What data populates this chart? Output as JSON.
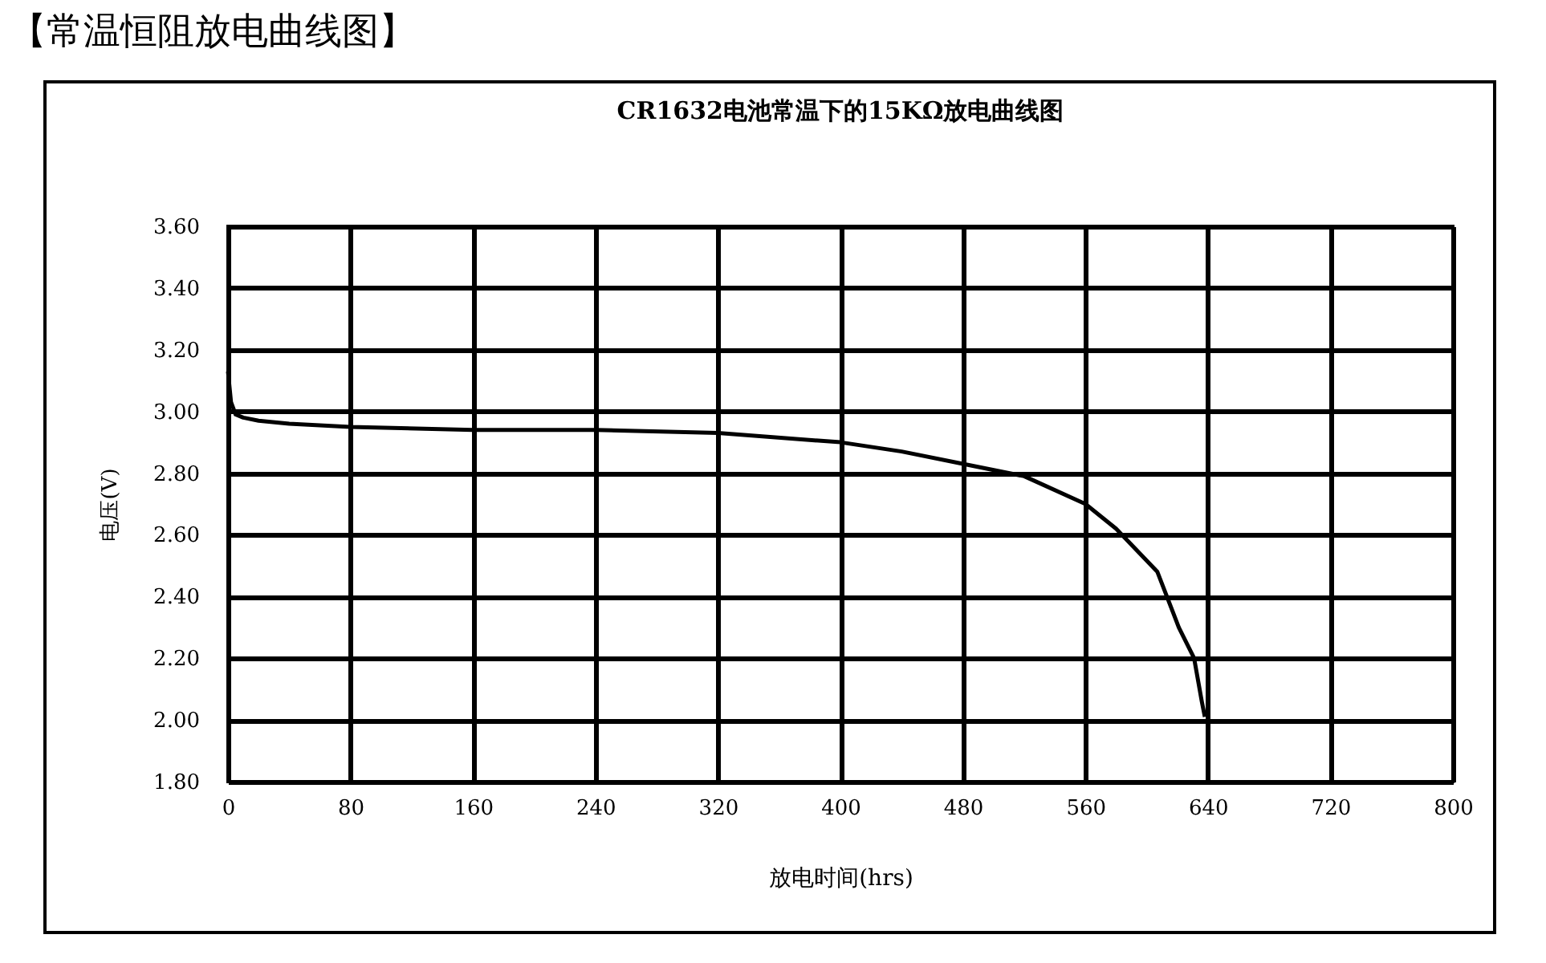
{
  "chart_data": {
    "type": "line",
    "title": "【常温恒阻放电曲线图】",
    "subtitle": "CR1632电池常温下的15KΩ放电曲线图",
    "xlabel": "放电时间(hrs)",
    "ylabel": "电压(V)",
    "x": [
      0,
      2,
      5,
      10,
      20,
      40,
      80,
      160,
      240,
      320,
      400,
      440,
      480,
      520,
      560,
      580,
      607,
      621,
      631,
      636,
      638
    ],
    "series": [
      {
        "color": "#000000",
        "values": [
          3.13,
          3.03,
          2.99,
          2.98,
          2.97,
          2.96,
          2.95,
          2.94,
          2.94,
          2.93,
          2.9,
          2.87,
          2.83,
          2.79,
          2.7,
          2.62,
          2.48,
          2.3,
          2.2,
          2.06,
          2.01
        ]
      }
    ],
    "xlim": [
      0,
      800
    ],
    "xticks": [
      0,
      80,
      160,
      240,
      320,
      400,
      480,
      560,
      640,
      720,
      800
    ],
    "ylim": [
      1.8,
      3.6
    ],
    "yticks": [
      {
        "value": 1.8,
        "label": "1.80"
      },
      {
        "value": 2.0,
        "label": "2.00"
      },
      {
        "value": 2.2,
        "label": "2.20"
      },
      {
        "value": 2.4,
        "label": "2.40"
      },
      {
        "value": 2.6,
        "label": "2.60"
      },
      {
        "value": 2.8,
        "label": "2.80"
      },
      {
        "value": 3.0,
        "label": "3.00"
      },
      {
        "value": 3.2,
        "label": "3.20"
      },
      {
        "value": 3.4,
        "label": "3.40"
      },
      {
        "value": 3.6,
        "label": "3.60"
      }
    ],
    "grid": true
  }
}
